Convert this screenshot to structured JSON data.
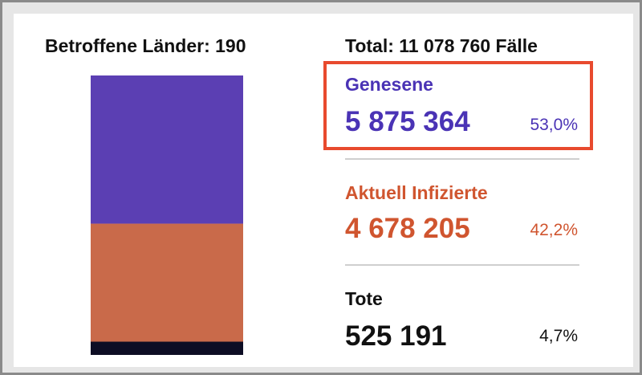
{
  "affected_countries_label": "Betroffene Länder: 190",
  "total_label": "Total: 11 078 760 Fälle",
  "colors": {
    "recovered": "#5b3fb3",
    "infected": "#c96a4a",
    "deaths": "#0d0d24",
    "highlight": "#e84a2e"
  },
  "stats": [
    {
      "label": "Genesene",
      "value": "5 875 364",
      "percent": "53,0%",
      "color": "#4a33b5"
    },
    {
      "label": "Aktuell Infizierte",
      "value": "4 678 205",
      "percent": "42,2%",
      "color": "#d0552f"
    },
    {
      "label": "Tote",
      "value": "525 191",
      "percent": "4,7%",
      "color": "#111111"
    }
  ],
  "chart_data": {
    "type": "bar",
    "stacked": true,
    "categories": [
      "Genesene",
      "Aktuell Infizierte",
      "Tote"
    ],
    "values": [
      5875364,
      4678205,
      525191
    ],
    "percentages": [
      53.0,
      42.2,
      4.7
    ],
    "total": 11078760,
    "title": "Total: 11 078 760 Fälle",
    "subtitle": "Betroffene Länder: 190",
    "series_colors": [
      "#5b3fb3",
      "#c96a4a",
      "#0d0d24"
    ],
    "highlighted_series": "Genesene"
  }
}
